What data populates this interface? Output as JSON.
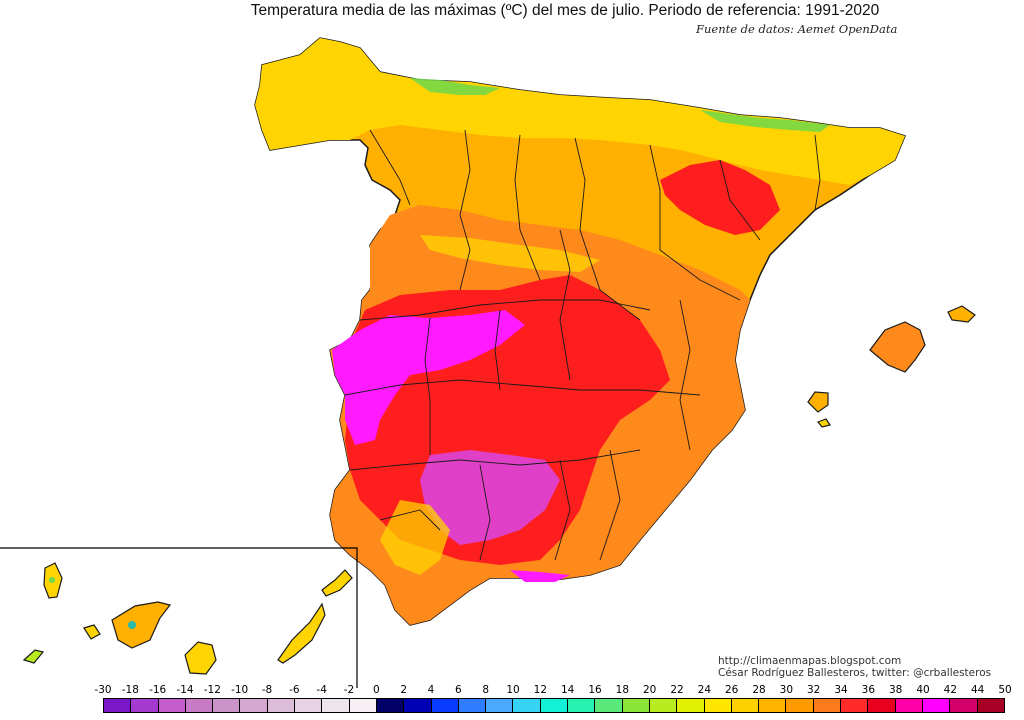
{
  "title": "Temperatura media de las máximas (ºC) del mes de julio. Periodo de referencia: 1991-2020",
  "source": "Fuente de datos: Aemet OpenData",
  "credits": {
    "blog": "http://climaenmapas.blogspot.com",
    "author": "César Rodríguez Ballesteros, twitter: @crballesteros"
  },
  "legend": {
    "labels": [
      "-30",
      "-18",
      "-16",
      "-14",
      "-12",
      "-10",
      "-8",
      "-6",
      "-4",
      "-2",
      "0",
      "2",
      "4",
      "6",
      "8",
      "10",
      "12",
      "14",
      "16",
      "18",
      "20",
      "22",
      "24",
      "26",
      "28",
      "30",
      "32",
      "34",
      "36",
      "38",
      "40",
      "42",
      "44",
      "50"
    ],
    "colors": [
      "#7a17c8",
      "#a43ad0",
      "#c45ccc",
      "#c77bc7",
      "#cb94c9",
      "#d4a8d1",
      "#ddbcd9",
      "#e6d2e2",
      "#eee4ec",
      "#f6f0f4",
      "#000066",
      "#0000b4",
      "#0a3cff",
      "#2f7cff",
      "#4aa8ff",
      "#36d3f5",
      "#12f0d8",
      "#27f2b0",
      "#5ae87a",
      "#8ce63a",
      "#b8ec20",
      "#e0f000",
      "#ffe600",
      "#ffd000",
      "#ffb400",
      "#ff9a00",
      "#ff7a1a",
      "#ff2a2a",
      "#e8001e",
      "#ff00a8",
      "#ff00ff",
      "#d4006a",
      "#a80025"
    ]
  },
  "map": {
    "colors": {
      "border": "#1a1a1a",
      "inset_border": "#000000",
      "yellow": "#ffd400",
      "lightorange": "#ffb000",
      "orange": "#ff8a1c",
      "red": "#ff1e1e",
      "magenta": "#ff1aff",
      "pink": "#e040c8",
      "green": "#6fd84a",
      "teal": "#2bb8a8"
    }
  }
}
